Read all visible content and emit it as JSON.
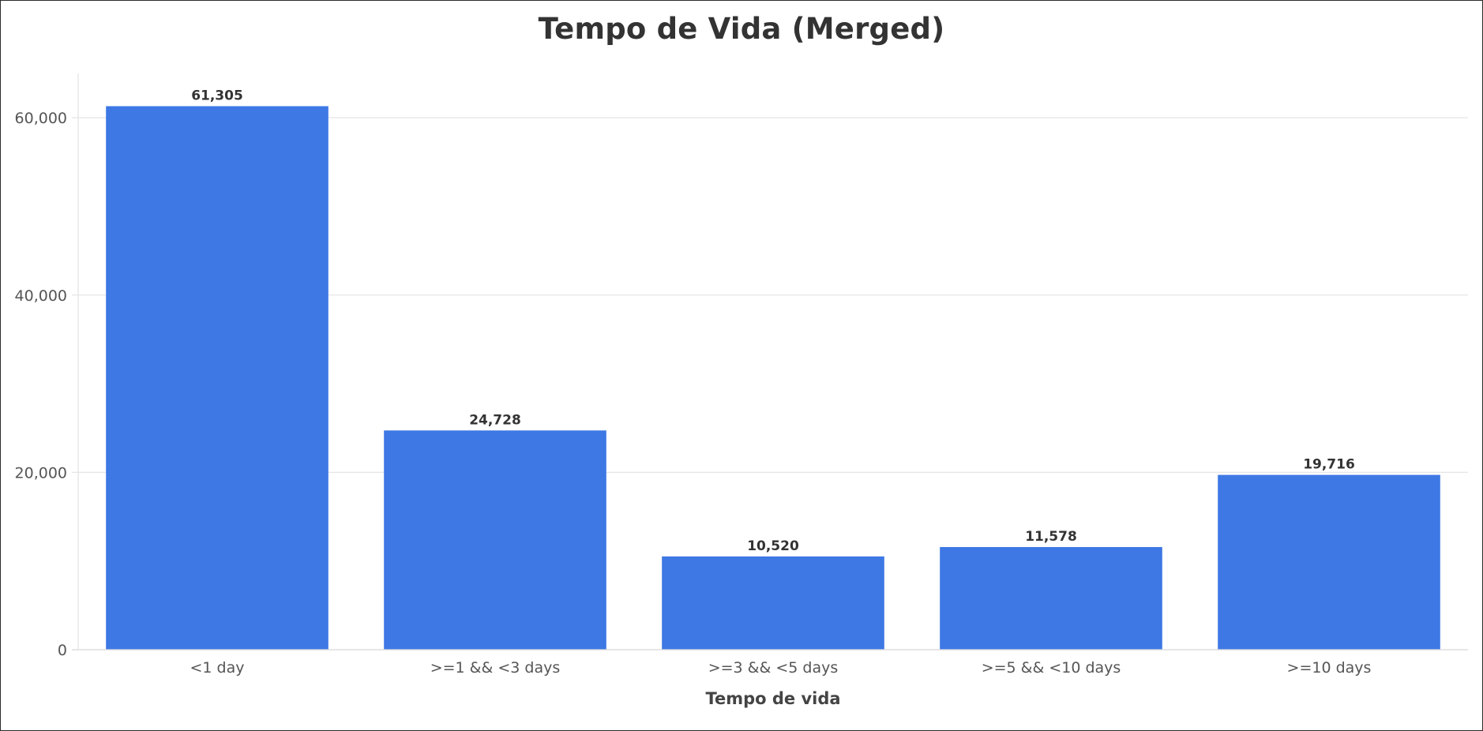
{
  "chart_data": {
    "type": "bar",
    "title": "Tempo de Vida (Merged)",
    "xlabel": "Tempo de vida",
    "ylabel": "",
    "categories": [
      "<1 day",
      ">=1 && <3 days",
      ">=3 && <5 days",
      ">=5 && <10 days",
      ">=10 days"
    ],
    "values": [
      61305,
      24728,
      10520,
      11578,
      19716
    ],
    "value_labels": [
      "61,305",
      "24,728",
      "10,520",
      "11,578",
      "19,716"
    ],
    "yticks": [
      0,
      20000,
      40000,
      60000
    ],
    "ytick_labels": [
      "0",
      "20,000",
      "40,000",
      "60,000"
    ],
    "ylim": [
      0,
      65000
    ],
    "grid": true,
    "legend": "none",
    "colors": {
      "bar": "#3d78e4",
      "grid": "#e6e6e6",
      "axis": "#dcdcdc"
    }
  }
}
